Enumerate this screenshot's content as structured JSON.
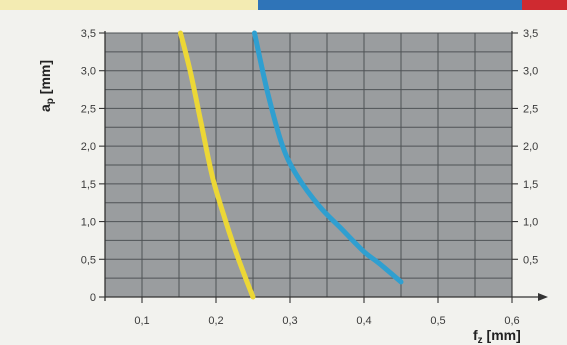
{
  "chart_data": {
    "type": "line",
    "xlabel": {
      "main": "f",
      "sub": "z",
      "unit": " [mm]"
    },
    "ylabel": {
      "main": "a",
      "sub": "p",
      "unit": " [mm]"
    },
    "xlim": [
      0.05,
      0.6
    ],
    "ylim": [
      0,
      3.5
    ],
    "x_ticks": [
      "0,1",
      "0,2",
      "0,3",
      "0,4",
      "0,5",
      "0,6"
    ],
    "y_ticks": [
      "0",
      "0,5",
      "1,0",
      "1,5",
      "2,0",
      "2,5",
      "3,0",
      "3,5"
    ],
    "right_y_ticks": [
      "0,5",
      "1,0",
      "1,5",
      "2,0",
      "2,5",
      "3,0",
      "3,5"
    ],
    "grid": true,
    "series": [
      {
        "color": "#ecd736",
        "x": [
          0.152,
          0.165,
          0.18,
          0.195,
          0.21,
          0.225,
          0.24,
          0.25
        ],
        "y": [
          3.5,
          3.0,
          2.3,
          1.6,
          1.1,
          0.65,
          0.25,
          0.0
        ]
      },
      {
        "color": "#2f9fd0",
        "x": [
          0.252,
          0.27,
          0.29,
          0.31,
          0.34,
          0.37,
          0.4,
          0.42,
          0.45
        ],
        "y": [
          3.5,
          2.7,
          2.0,
          1.6,
          1.2,
          0.9,
          0.6,
          0.45,
          0.2
        ]
      }
    ],
    "colors": {
      "plot_bg": "#9a9d9f",
      "grid": "#4f5356",
      "axis": "#333333"
    }
  },
  "top_strip": [
    {
      "color": "#f3ebb2"
    },
    {
      "color": "#2f74b8"
    },
    {
      "color": "#cf2a30"
    }
  ]
}
